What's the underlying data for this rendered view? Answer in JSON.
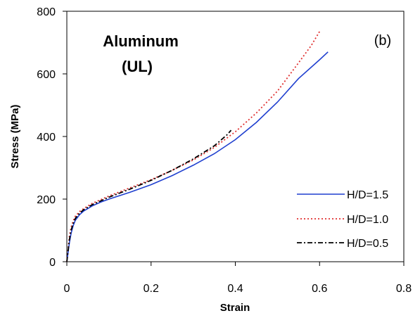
{
  "chart_data": {
    "type": "line",
    "title": "Aluminum",
    "subtitle": "(UL)",
    "panel_label": "(b)",
    "xlabel": "Strain",
    "ylabel": "Stress (MPa)",
    "xlim": [
      0,
      0.8
    ],
    "ylim": [
      0,
      800
    ],
    "xticks": [
      0,
      0.2,
      0.4,
      0.6,
      0.8
    ],
    "xtick_labels": [
      "0",
      "0.2",
      "0.4",
      "0.6",
      "0.8"
    ],
    "yticks": [
      0,
      200,
      400,
      600,
      800
    ],
    "ytick_labels": [
      "0",
      "200",
      "400",
      "600",
      "800"
    ],
    "grid": false,
    "legend_position": "bottom-right",
    "series": [
      {
        "name": "H/D=1.5",
        "color": "#1f3fcf",
        "style": "solid",
        "x": [
          0.0,
          0.003,
          0.006,
          0.01,
          0.015,
          0.02,
          0.03,
          0.04,
          0.05,
          0.06,
          0.08,
          0.1,
          0.15,
          0.2,
          0.25,
          0.3,
          0.35,
          0.4,
          0.45,
          0.5,
          0.55,
          0.6,
          0.62
        ],
        "y": [
          0,
          30,
          60,
          90,
          115,
          132,
          150,
          162,
          170,
          178,
          190,
          200,
          222,
          246,
          275,
          308,
          345,
          390,
          445,
          510,
          585,
          645,
          670
        ]
      },
      {
        "name": "H/D=1.0",
        "color": "#e03030",
        "style": "dotted",
        "x": [
          0.0,
          0.003,
          0.006,
          0.01,
          0.015,
          0.02,
          0.03,
          0.04,
          0.05,
          0.06,
          0.08,
          0.1,
          0.15,
          0.2,
          0.25,
          0.3,
          0.35,
          0.4,
          0.45,
          0.5,
          0.55,
          0.58,
          0.6
        ],
        "y": [
          0,
          40,
          80,
          110,
          130,
          145,
          160,
          170,
          178,
          186,
          198,
          210,
          236,
          262,
          292,
          325,
          365,
          415,
          475,
          545,
          635,
          690,
          735
        ]
      },
      {
        "name": "H/D=0.5",
        "color": "#000000",
        "style": "dashdot",
        "x": [
          0.0,
          0.003,
          0.006,
          0.01,
          0.015,
          0.02,
          0.03,
          0.04,
          0.05,
          0.06,
          0.08,
          0.1,
          0.15,
          0.2,
          0.25,
          0.3,
          0.35,
          0.38,
          0.39
        ],
        "y": [
          0,
          35,
          70,
          100,
          122,
          138,
          155,
          166,
          174,
          182,
          194,
          206,
          232,
          260,
          292,
          328,
          370,
          405,
          420
        ]
      }
    ]
  }
}
